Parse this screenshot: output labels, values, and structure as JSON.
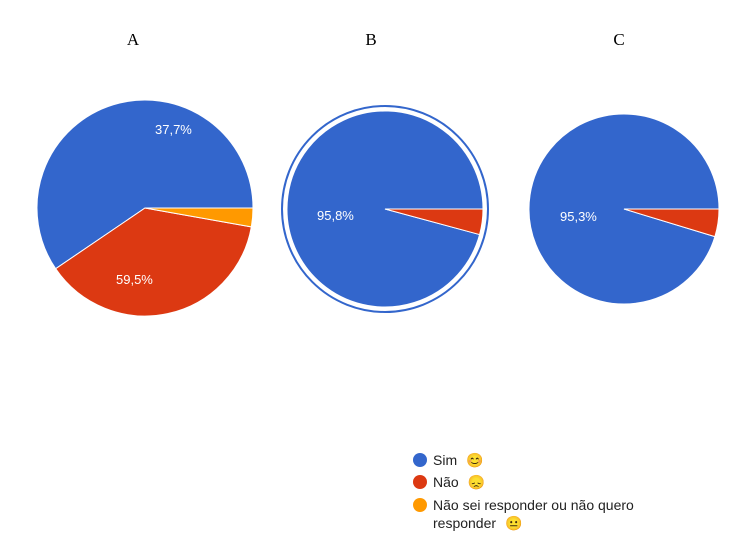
{
  "colors": {
    "sim": "#3366cc",
    "nao": "#dc3912",
    "nao_sei": "#ff9900",
    "outline": "#3366cc"
  },
  "legend": [
    {
      "key": "sim",
      "label": "Sim",
      "emoji": "😊"
    },
    {
      "key": "nao",
      "label": "Não",
      "emoji": "😞"
    },
    {
      "key": "nao_sei",
      "label_line1": "Não sei responder ou não quero",
      "label_line2": "responder",
      "emoji": "😐"
    }
  ],
  "chart_data": [
    {
      "type": "pie",
      "title": "A",
      "categories": [
        "Sim",
        "Não",
        "Não sei responder ou não quero responder"
      ],
      "values": [
        59.5,
        37.7,
        2.8
      ],
      "data_labels": [
        "59,5%",
        "37,7%",
        ""
      ]
    },
    {
      "type": "pie",
      "title": "B",
      "categories": [
        "Sim",
        "Não",
        "Não sei responder ou não quero responder"
      ],
      "values": [
        95.8,
        4.2,
        0
      ],
      "data_labels": [
        "95,8%",
        "",
        ""
      ],
      "highlighted": true
    },
    {
      "type": "pie",
      "title": "C",
      "categories": [
        "Sim",
        "Não",
        "Não sei responder ou não quero responder"
      ],
      "values": [
        95.3,
        4.7,
        0
      ],
      "data_labels": [
        "95,3%",
        "",
        ""
      ]
    }
  ]
}
